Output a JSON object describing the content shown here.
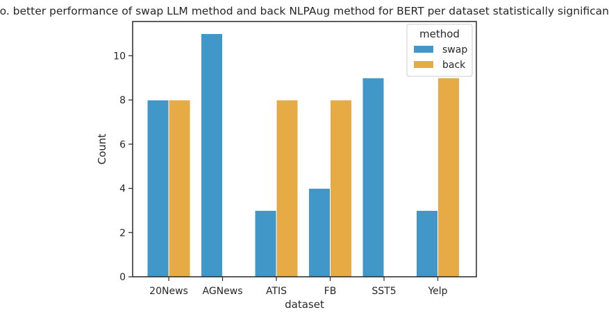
{
  "chart_data": {
    "type": "bar",
    "title": "No. better performance of swap LLM method and back NLPAug method for BERT per dataset statistically significant.",
    "xlabel": "dataset",
    "ylabel": "Count",
    "categories": [
      "20News",
      "AGNews",
      "ATIS",
      "FB",
      "SST5",
      "Yelp"
    ],
    "series": [
      {
        "name": "swap",
        "values": [
          8,
          11,
          3,
          4,
          9,
          3
        ],
        "color": "#4197c8"
      },
      {
        "name": "back",
        "values": [
          8,
          0,
          8,
          8,
          0,
          9
        ],
        "color": "#e6ab45"
      }
    ],
    "ylim": [
      0,
      11.55
    ],
    "yticks": [
      0,
      2,
      4,
      6,
      8,
      10
    ],
    "grid": false,
    "legend": {
      "title": "method",
      "placement": "top-right"
    }
  }
}
